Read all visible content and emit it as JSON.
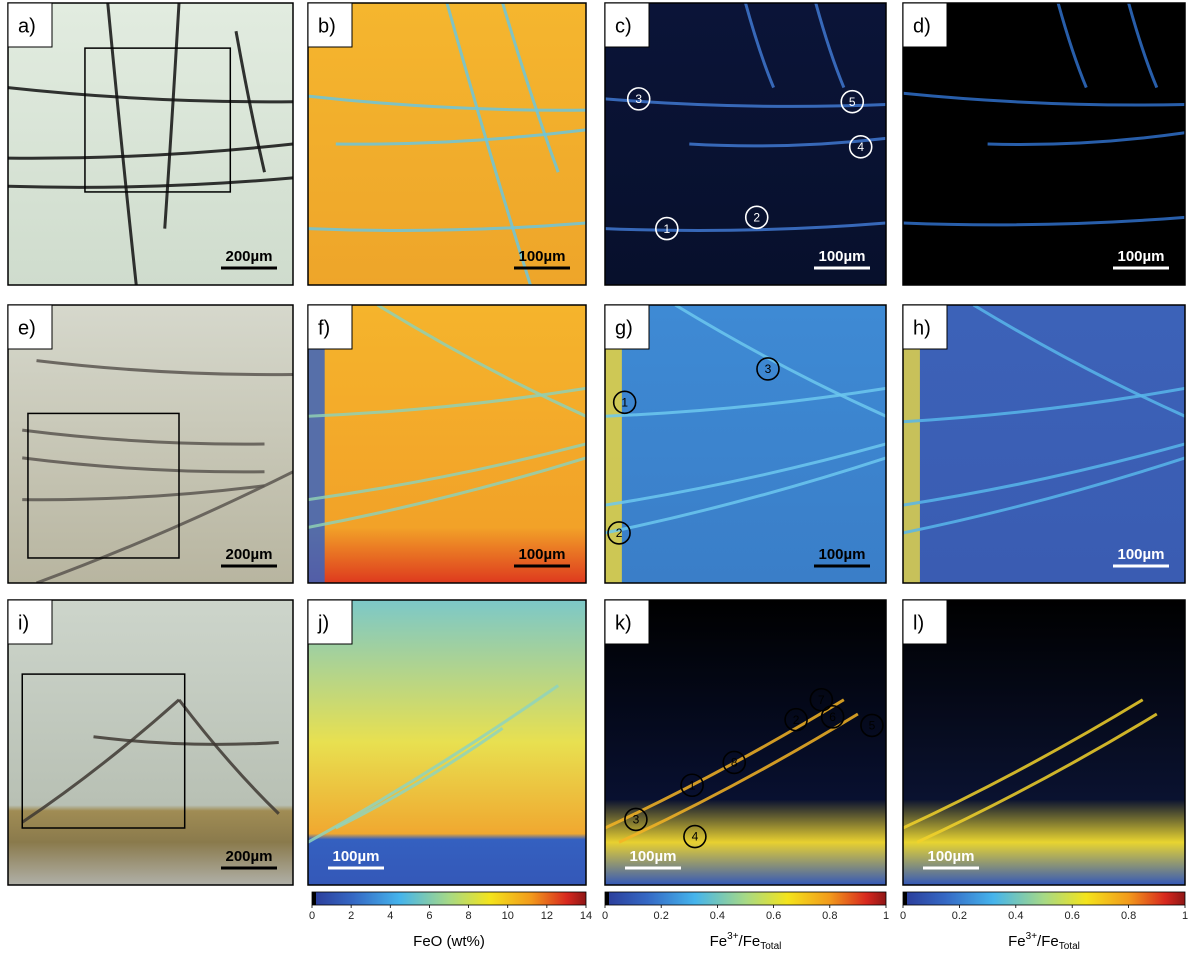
{
  "panels": [
    {
      "label": "a)",
      "scale_bar": "200µm",
      "markers": []
    },
    {
      "label": "b)",
      "scale_bar": "100µm",
      "markers": []
    },
    {
      "label": "c)",
      "scale_bar": "100µm",
      "markers": [
        "3",
        "5",
        "4",
        "1",
        "2"
      ]
    },
    {
      "label": "d)",
      "scale_bar": "100µm",
      "markers": []
    },
    {
      "label": "e)",
      "scale_bar": "200µm",
      "markers": []
    },
    {
      "label": "f)",
      "scale_bar": "100µm",
      "markers": []
    },
    {
      "label": "g)",
      "scale_bar": "100µm",
      "markers": [
        "1",
        "3",
        "2"
      ]
    },
    {
      "label": "h)",
      "scale_bar": "100µm",
      "markers": []
    },
    {
      "label": "i)",
      "scale_bar": "200µm",
      "markers": []
    },
    {
      "label": "j)",
      "scale_bar": "100µm",
      "markers": []
    },
    {
      "label": "k)",
      "scale_bar": "100µm",
      "markers": [
        "7",
        "2",
        "6",
        "5",
        "8",
        "1",
        "3",
        "4"
      ]
    },
    {
      "label": "l)",
      "scale_bar": "100µm",
      "markers": []
    }
  ],
  "colorbars": [
    {
      "type": "colorbar",
      "label": {
        "text": "FeO (wt%)"
      },
      "lim": [
        0,
        14
      ],
      "ticks": [
        0,
        2,
        4,
        6,
        8,
        10,
        12,
        14
      ]
    },
    {
      "type": "colorbar",
      "label": {
        "base": "Fe",
        "sup": "3+",
        "mid": "/Fe",
        "sub": "Total"
      },
      "lim": [
        0,
        1
      ],
      "ticks": [
        0,
        0.2,
        0.4,
        0.6,
        0.8,
        1
      ]
    },
    {
      "type": "colorbar",
      "label": {
        "base": "Fe",
        "sup": "3+",
        "mid": "/Fe",
        "sub": "Total"
      },
      "lim": [
        0,
        1
      ],
      "ticks": [
        0,
        0.2,
        0.4,
        0.6,
        0.8,
        1
      ]
    }
  ]
}
